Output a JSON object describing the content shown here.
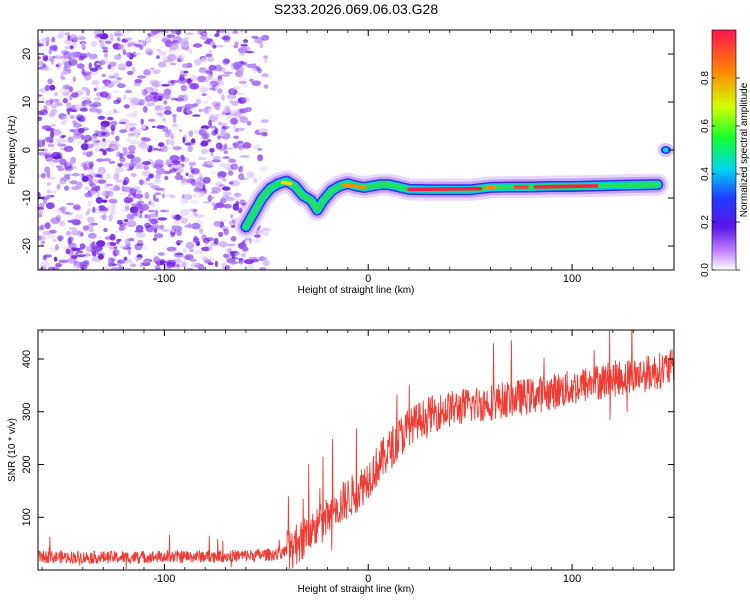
{
  "title": "S233.2026.069.06.03.G28",
  "chart_data": [
    {
      "type": "heatmap",
      "xlabel": "Height of straight line (km)",
      "ylabel": "Frequency (Hz)",
      "xlim": [
        -162,
        150
      ],
      "ylim": [
        -25,
        25
      ],
      "xticks": [
        "-100",
        "0",
        "100"
      ],
      "xtick_values": [
        -100,
        0,
        100
      ],
      "yticks": [
        "-20",
        "-10",
        "0",
        "10",
        "20"
      ],
      "ytick_values": [
        -20,
        -10,
        0,
        10,
        20
      ],
      "ridge": {
        "x": [
          -60,
          -56,
          -52,
          -48,
          -44,
          -40,
          -36,
          -32,
          -28,
          -25,
          -22,
          -18,
          -14,
          -10,
          -6,
          -2,
          2,
          6,
          10,
          14,
          20,
          30,
          40,
          50,
          60,
          70,
          80,
          90,
          100,
          110,
          120,
          130,
          142
        ],
        "y": [
          -16,
          -13,
          -10,
          -8,
          -7,
          -6.5,
          -7.5,
          -9.5,
          -10.5,
          -12.5,
          -10.5,
          -8.5,
          -7.5,
          -7,
          -7.5,
          -7.8,
          -7.5,
          -7.2,
          -7.2,
          -7.6,
          -8.2,
          -8.3,
          -8.3,
          -8.3,
          -7.8,
          -7.7,
          -7.7,
          -7.6,
          -7.6,
          -7.5,
          -7.4,
          -7.3,
          -7.2
        ]
      },
      "colorbar": {
        "label": "Normalized spectral amplitude",
        "range": [
          0,
          1
        ],
        "ticks": [
          "0.0",
          "0.2",
          "0.4",
          "0.6",
          "0.8"
        ],
        "tick_values": [
          0,
          0.2,
          0.4,
          0.6,
          0.8
        ]
      }
    },
    {
      "type": "line",
      "xlabel": "Height of straight line (km)",
      "ylabel": "SNR (10 * v/v)",
      "xlim": [
        -162,
        150
      ],
      "ylim": [
        0,
        455
      ],
      "xticks": [
        "-100",
        "0",
        "100"
      ],
      "xtick_values": [
        -100,
        0,
        100
      ],
      "yticks": [
        "100",
        "200",
        "300",
        "400"
      ],
      "ytick_values": [
        100,
        200,
        300,
        400
      ],
      "color": "#f03a32",
      "series": [
        {
          "name": "SNR",
          "x": [
            -162,
            -140,
            -120,
            -100,
            -80,
            -60,
            -45,
            -38,
            -32,
            -25,
            -18,
            -12,
            -5,
            0,
            5,
            10,
            15,
            20,
            25,
            30,
            40,
            50,
            60,
            70,
            80,
            90,
            100,
            110,
            120,
            130,
            140,
            150
          ],
          "values": [
            25,
            24,
            24,
            25,
            26,
            27,
            30,
            38,
            60,
            80,
            105,
            130,
            150,
            175,
            200,
            225,
            250,
            270,
            285,
            295,
            305,
            312,
            318,
            325,
            330,
            338,
            345,
            355,
            362,
            368,
            375,
            385
          ]
        }
      ]
    }
  ]
}
